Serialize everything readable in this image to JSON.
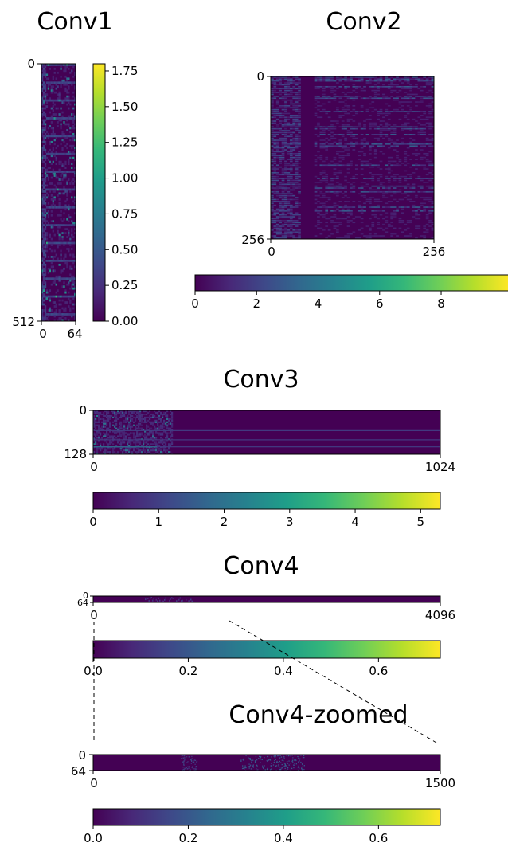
{
  "colormap": {
    "name": "viridis",
    "stops": [
      "#440154",
      "#482878",
      "#3e4989",
      "#31688e",
      "#26828e",
      "#1f9e89",
      "#35b779",
      "#6ece58",
      "#b5de2b",
      "#fde725"
    ]
  },
  "chart_data": [
    {
      "type": "heatmap",
      "title": "Conv1",
      "x_ticks": [
        "0",
        "64"
      ],
      "y_ticks": [
        "0",
        "512"
      ],
      "shape": [
        512,
        64
      ],
      "colorbar": {
        "orientation": "vertical",
        "range": [
          0,
          1.8
        ],
        "ticks": [
          "0.00",
          "0.25",
          "0.50",
          "0.75",
          "1.00",
          "1.25",
          "1.50",
          "1.75"
        ],
        "tick_values": [
          0,
          0.25,
          0.5,
          0.75,
          1.0,
          1.25,
          1.5,
          1.75
        ]
      }
    },
    {
      "type": "heatmap",
      "title": "Conv2",
      "x_ticks": [
        "0",
        "256"
      ],
      "y_ticks": [
        "0",
        "256"
      ],
      "shape": [
        256,
        256
      ],
      "colorbar": {
        "orientation": "horizontal",
        "range": [
          0,
          10.2
        ],
        "ticks": [
          "0",
          "2",
          "4",
          "6",
          "8"
        ],
        "tick_values": [
          0,
          2,
          4,
          6,
          8
        ]
      }
    },
    {
      "type": "heatmap",
      "title": "Conv3",
      "x_ticks": [
        "0",
        "1024"
      ],
      "y_ticks": [
        "0",
        "128"
      ],
      "shape": [
        128,
        1024
      ],
      "colorbar": {
        "orientation": "horizontal",
        "range": [
          0,
          5.3
        ],
        "ticks": [
          "0",
          "1",
          "2",
          "3",
          "4",
          "5"
        ],
        "tick_values": [
          0,
          1,
          2,
          3,
          4,
          5
        ]
      }
    },
    {
      "type": "heatmap",
      "title": "Conv4",
      "x_ticks": [
        "0",
        "4096"
      ],
      "y_ticks": [
        "0",
        "64"
      ],
      "shape": [
        64,
        4096
      ],
      "colorbar": {
        "orientation": "horizontal",
        "range": [
          0,
          0.73
        ],
        "ticks": [
          "0.0",
          "0.2",
          "0.4",
          "0.6"
        ],
        "tick_values": [
          0,
          0.2,
          0.4,
          0.6
        ]
      }
    },
    {
      "type": "heatmap",
      "title": "Conv4-zoomed",
      "x_ticks": [
        "0",
        "1500"
      ],
      "y_ticks": [
        "0",
        "64"
      ],
      "shape": [
        64,
        1500
      ],
      "colorbar": {
        "orientation": "horizontal",
        "range": [
          0,
          0.73
        ],
        "ticks": [
          "0.0",
          "0.2",
          "0.4",
          "0.6"
        ],
        "tick_values": [
          0,
          0.2,
          0.4,
          0.6
        ]
      }
    }
  ]
}
